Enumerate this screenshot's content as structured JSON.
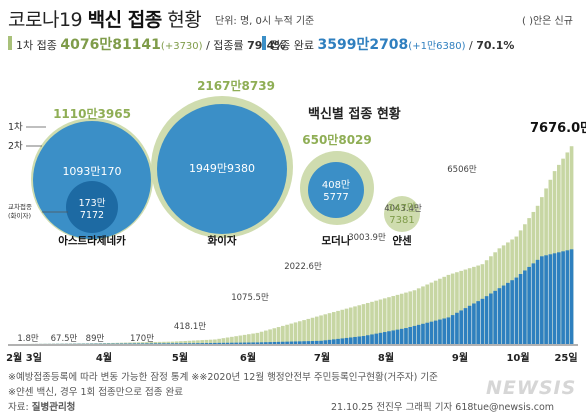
{
  "header": {
    "title_part1": "코로나19 ",
    "title_part2": "백신 접종",
    "title_part3": " 현황",
    "unit_note": "단위: 명, 0시 누적 기준",
    "legend_note": "( )안은 신규"
  },
  "summary": {
    "first_label": "1차 접종",
    "first_value": "4076만81141",
    "first_new": "(+3730)",
    "first_rate_label": "/ 접종률",
    "first_rate": "79.4%",
    "full_label": "접종 완료",
    "full_value": "3599만2708",
    "full_new": "(+1만6380)",
    "full_rate_label": "/",
    "full_rate": "70.1%"
  },
  "bubble_section": {
    "title": "백신별 접종 현황",
    "row_labels": {
      "first": "1차",
      "second": "2차",
      "cross": "교차접종",
      "cross_sub": "(화이자)"
    },
    "vaccines": [
      {
        "name": "아스트라제네카",
        "first": "1110만3965",
        "second": "1093만170",
        "cross_l1": "173만",
        "cross_l2": "7172"
      },
      {
        "name": "화이자",
        "first": "2167만8739",
        "second": "1949만9380"
      },
      {
        "name": "모더나",
        "first": "650만8029",
        "second_l1": "408만",
        "second_l2": "5777"
      },
      {
        "name": "얀센",
        "first_l1": "147만",
        "first_l2": "7381"
      }
    ]
  },
  "chart_data": {
    "type": "bar",
    "description": "일별 누적 접종자 수 (1차 접종 누적, 접종 완료 누적)",
    "series": [
      {
        "name": "1차 접종",
        "color": "#c7d6a3"
      },
      {
        "name": "접종 완료",
        "color": "#2e80bf"
      }
    ],
    "x_labels": [
      "2월 3일",
      "4월",
      "5월",
      "6월",
      "7월",
      "8월",
      "9월",
      "10월",
      "25일"
    ],
    "annotations": [
      {
        "label": "1.8만",
        "value": 1.8
      },
      {
        "label": "67.5만",
        "value": 67.5
      },
      {
        "label": "89만",
        "value": 89
      },
      {
        "label": "170만",
        "value": 170
      },
      {
        "label": "418.1만",
        "value": 418.1
      },
      {
        "label": "1075.5만",
        "value": 1075.5
      },
      {
        "label": "2022.6만",
        "value": 2022.6
      },
      {
        "label": "3003.9만",
        "value": 3003.9
      },
      {
        "label": "4043.4만",
        "value": 4043.4
      },
      {
        "label": "6506만",
        "value": 6506
      },
      {
        "label": "7676.0만",
        "value": 7676.0
      }
    ],
    "ylim": [
      0,
      7676
    ],
    "grid": false,
    "legend": "none"
  },
  "footer": {
    "note1": "※예방접종등록에 따라 변동 가능한 잠정 통계 ※※2020년 12월 행정안전부 주민등록인구현황(거주자) 기준",
    "note2": "※얀센 백신, 경우 1회 접종만으로 접종 완료",
    "source_label": "자료:",
    "source": "질병관리청",
    "credit": "21.10.25 전진우 그래픽 기자 618tue@newsis.com",
    "logo": "NEWSIS"
  }
}
